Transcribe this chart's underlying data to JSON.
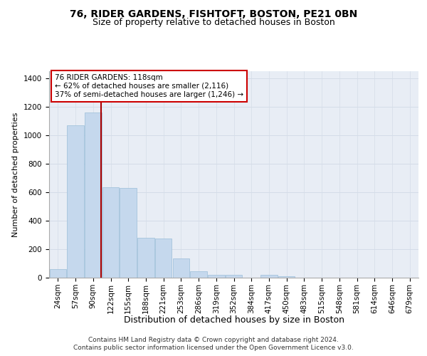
{
  "title1": "76, RIDER GARDENS, FISHTOFT, BOSTON, PE21 0BN",
  "title2": "Size of property relative to detached houses in Boston",
  "xlabel": "Distribution of detached houses by size in Boston",
  "ylabel": "Number of detached properties",
  "categories": [
    "24sqm",
    "57sqm",
    "90sqm",
    "122sqm",
    "155sqm",
    "188sqm",
    "221sqm",
    "253sqm",
    "286sqm",
    "319sqm",
    "352sqm",
    "384sqm",
    "417sqm",
    "450sqm",
    "483sqm",
    "515sqm",
    "548sqm",
    "581sqm",
    "614sqm",
    "646sqm",
    "679sqm"
  ],
  "values": [
    60,
    1070,
    1160,
    635,
    630,
    280,
    275,
    135,
    45,
    22,
    22,
    0,
    22,
    10,
    0,
    0,
    0,
    0,
    0,
    0,
    0
  ],
  "bar_color": "#c5d8ed",
  "bar_edge_color": "#9bbdd8",
  "grid_color": "#d4dce8",
  "background_color": "#e8edf5",
  "vline_x_index": 2.45,
  "vline_color": "#aa0000",
  "annotation_text": "76 RIDER GARDENS: 118sqm\n← 62% of detached houses are smaller (2,116)\n37% of semi-detached houses are larger (1,246) →",
  "annotation_box_color": "#cc0000",
  "ylim": [
    0,
    1450
  ],
  "yticks": [
    0,
    200,
    400,
    600,
    800,
    1000,
    1200,
    1400
  ],
  "footnote1": "Contains HM Land Registry data © Crown copyright and database right 2024.",
  "footnote2": "Contains public sector information licensed under the Open Government Licence v3.0.",
  "title1_fontsize": 10,
  "title2_fontsize": 9,
  "xlabel_fontsize": 9,
  "ylabel_fontsize": 8,
  "tick_fontsize": 7.5,
  "annotation_fontsize": 7.5,
  "footnote_fontsize": 6.5
}
